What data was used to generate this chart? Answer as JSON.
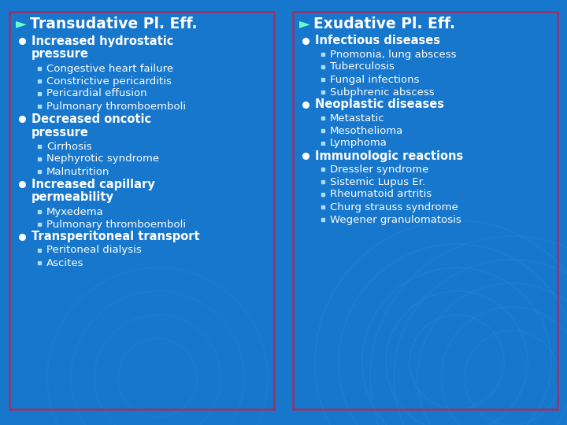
{
  "bg_color": "#1777cc",
  "box_border": "#993366",
  "title_color": "#ffffff",
  "arrow_color": "#66ffcc",
  "text_color": "#ffffff",
  "left_title": "Transudative Pl. Eff.",
  "right_title": "Exudative Pl. Eff.",
  "left_content": [
    {
      "level": 1,
      "text": "Increased hydrostatic\npressure"
    },
    {
      "level": 2,
      "text": "Congestive heart failure"
    },
    {
      "level": 2,
      "text": "Constrictive pericarditis"
    },
    {
      "level": 2,
      "text": "Pericardial effusion"
    },
    {
      "level": 2,
      "text": "Pulmonary thromboemboli"
    },
    {
      "level": 1,
      "text": "Decreased oncotic\npressure"
    },
    {
      "level": 2,
      "text": "Cirrhosis"
    },
    {
      "level": 2,
      "text": "Nephyrotic syndrome"
    },
    {
      "level": 2,
      "text": "Malnutrition"
    },
    {
      "level": 1,
      "text": "Increased capillary\npermeability"
    },
    {
      "level": 2,
      "text": "Myxedema"
    },
    {
      "level": 2,
      "text": "Pulmonary thromboemboli"
    },
    {
      "level": 1,
      "text": "Transperitoneal transport"
    },
    {
      "level": 2,
      "text": "Peritoneal dialysis"
    },
    {
      "level": 2,
      "text": "Ascites"
    }
  ],
  "right_content": [
    {
      "level": 1,
      "text": "Infectious diseases"
    },
    {
      "level": 2,
      "text": "Pnomonia, lung abscess"
    },
    {
      "level": 2,
      "text": "Tuberculosis"
    },
    {
      "level": 2,
      "text": "Fungal infections"
    },
    {
      "level": 2,
      "text": "Subphrenic abscess"
    },
    {
      "level": 1,
      "text": "Neoplastic diseases"
    },
    {
      "level": 2,
      "text": "Metastatic"
    },
    {
      "level": 2,
      "text": "Mesothelioma"
    },
    {
      "level": 2,
      "text": "Lymphoma"
    },
    {
      "level": 1,
      "text": "Immunologic reactions"
    },
    {
      "level": 2,
      "text": "Dressler syndrome"
    },
    {
      "level": 2,
      "text": "Sistemic Lupus Er."
    },
    {
      "level": 2,
      "text": "Rheumatoid artritis"
    },
    {
      "level": 2,
      "text": "Churg strauss syndrome"
    },
    {
      "level": 2,
      "text": "Wegener granulomatosis"
    }
  ]
}
